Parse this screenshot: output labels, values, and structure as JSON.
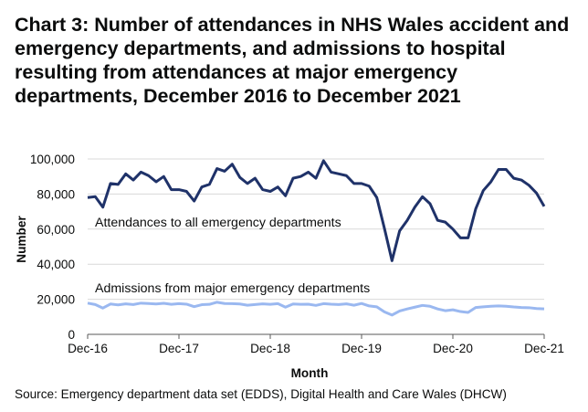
{
  "chart_data": {
    "type": "line",
    "title": "Chart 3: Number of attendances in NHS Wales accident and emergency departments, and admissions to hospital resulting from attendances at major emergency departments, December 2016 to December 2021",
    "xlabel": "Month",
    "ylabel": "Number",
    "ylim": [
      0,
      100000
    ],
    "yticks": [
      0,
      20000,
      40000,
      60000,
      80000,
      100000
    ],
    "ytick_labels": [
      "0",
      "20,000",
      "40,000",
      "60,000",
      "80,000",
      "100,000"
    ],
    "xtick_labels": [
      "Dec-16",
      "Dec-17",
      "Dec-18",
      "Dec-19",
      "Dec-20",
      "Dec-21"
    ],
    "grid": true,
    "x": [
      "Dec-16",
      "Jan-17",
      "Feb-17",
      "Mar-17",
      "Apr-17",
      "May-17",
      "Jun-17",
      "Jul-17",
      "Aug-17",
      "Sep-17",
      "Oct-17",
      "Nov-17",
      "Dec-17",
      "Jan-18",
      "Feb-18",
      "Mar-18",
      "Apr-18",
      "May-18",
      "Jun-18",
      "Jul-18",
      "Aug-18",
      "Sep-18",
      "Oct-18",
      "Nov-18",
      "Dec-18",
      "Jan-19",
      "Feb-19",
      "Mar-19",
      "Apr-19",
      "May-19",
      "Jun-19",
      "Jul-19",
      "Aug-19",
      "Sep-19",
      "Oct-19",
      "Nov-19",
      "Dec-19",
      "Jan-20",
      "Feb-20",
      "Mar-20",
      "Apr-20",
      "May-20",
      "Jun-20",
      "Jul-20",
      "Aug-20",
      "Sep-20",
      "Oct-20",
      "Nov-20",
      "Dec-20",
      "Jan-21",
      "Feb-21",
      "Mar-21",
      "Apr-21",
      "May-21",
      "Jun-21",
      "Jul-21",
      "Aug-21",
      "Sep-21",
      "Oct-21",
      "Nov-21",
      "Dec-21"
    ],
    "series": [
      {
        "name": "Attendances to all emergency departments",
        "color": "#1f3269",
        "values": [
          78000,
          78500,
          72500,
          86000,
          85500,
          91500,
          88000,
          92500,
          90500,
          87000,
          90000,
          82500,
          82500,
          81500,
          76000,
          84000,
          85500,
          94500,
          93000,
          97000,
          89500,
          86000,
          89000,
          82500,
          81500,
          84000,
          79000,
          89000,
          90000,
          92500,
          89000,
          99000,
          92500,
          91500,
          90500,
          86000,
          86000,
          84500,
          78000,
          60500,
          42000,
          59000,
          65000,
          72500,
          78500,
          74500,
          65000,
          64000,
          60000,
          55000,
          55000,
          71500,
          82000,
          87000,
          94000,
          94000,
          89000,
          88000,
          85000,
          80500,
          73000
        ]
      },
      {
        "name": "Admissions from major emergency departments",
        "color": "#9ab8f0",
        "values": [
          17800,
          17000,
          15000,
          17300,
          16800,
          17400,
          17000,
          17800,
          17600,
          17300,
          17700,
          17100,
          17500,
          17200,
          15800,
          16900,
          17100,
          18300,
          17600,
          17500,
          17300,
          16600,
          17000,
          17400,
          17100,
          17500,
          15500,
          17300,
          17100,
          17200,
          16500,
          17500,
          17200,
          17000,
          17400,
          16600,
          17600,
          16200,
          15700,
          12800,
          11000,
          13300,
          14500,
          15500,
          16500,
          16000,
          14500,
          13500,
          14000,
          13000,
          12500,
          15300,
          15700,
          16000,
          16200,
          16000,
          15600,
          15300,
          15200,
          14700,
          14500
        ]
      }
    ]
  },
  "source": "Source: Emergency department data set (EDDS), Digital Health and Care Wales (DHCW)"
}
